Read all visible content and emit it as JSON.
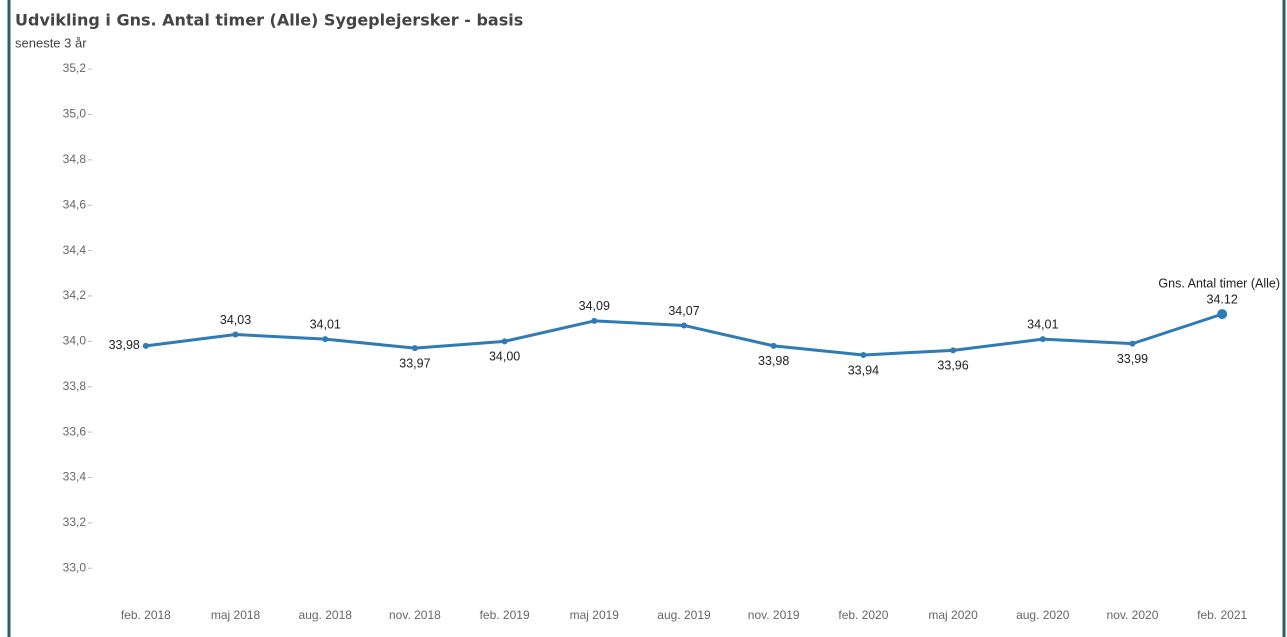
{
  "chart_data": {
    "type": "line",
    "title": "Udvikling i Gns. Antal timer (Alle) Sygeplejersker - basis",
    "subtitle": "seneste 3 år",
    "annotation": "Gns. Antal timer (Alle)",
    "categories": [
      "feb. 2018",
      "maj 2018",
      "aug. 2018",
      "nov. 2018",
      "feb. 2019",
      "maj 2019",
      "aug. 2019",
      "nov. 2019",
      "feb. 2020",
      "maj 2020",
      "aug. 2020",
      "nov. 2020",
      "feb. 2021"
    ],
    "series": [
      {
        "name": "Gns. Antal timer (Alle)",
        "color": "#2e7bb6",
        "values": [
          33.98,
          34.03,
          34.01,
          33.97,
          34.0,
          34.09,
          34.07,
          33.98,
          33.94,
          33.96,
          34.01,
          33.99,
          34.12
        ],
        "value_labels": [
          "33,98",
          "34,03",
          "34,01",
          "33,97",
          "34,00",
          "34,09",
          "34,07",
          "33,98",
          "33,94",
          "33,96",
          "34,01",
          "33,99",
          "34.12"
        ]
      }
    ],
    "ylim": [
      32.86,
      35.24
    ],
    "yticks": [
      {
        "value": 33.0,
        "label": "33,0"
      },
      {
        "value": 33.2,
        "label": "33,2"
      },
      {
        "value": 33.4,
        "label": "33,4"
      },
      {
        "value": 33.6,
        "label": "33,6"
      },
      {
        "value": 33.8,
        "label": "33,8"
      },
      {
        "value": 34.0,
        "label": "34,0"
      },
      {
        "value": 34.2,
        "label": "34,2"
      },
      {
        "value": 34.4,
        "label": "34,4"
      },
      {
        "value": 34.6,
        "label": "34,6"
      },
      {
        "value": 34.8,
        "label": "34,8"
      },
      {
        "value": 35.0,
        "label": "35,0"
      },
      {
        "value": 35.2,
        "label": "35,2"
      }
    ],
    "grid": false
  }
}
